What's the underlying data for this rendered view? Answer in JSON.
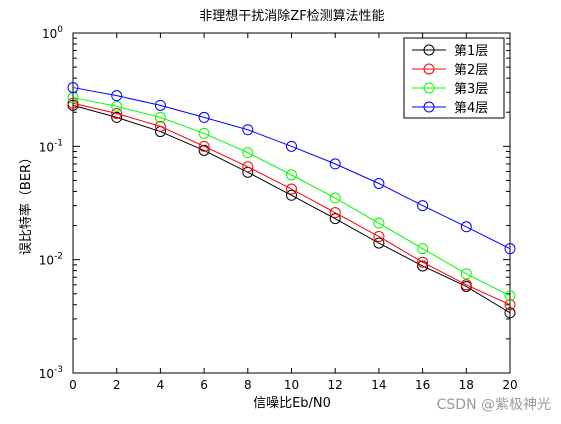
{
  "chart_data": {
    "type": "line",
    "title": "非理想干扰消除ZF检测算法性能",
    "xlabel": "信噪比Eb/N0",
    "ylabel": "误比特率（BER）",
    "yscale": "log",
    "xlim": [
      0,
      20
    ],
    "ylim": [
      0.001,
      1
    ],
    "x": [
      0,
      2,
      4,
      6,
      8,
      10,
      12,
      14,
      16,
      18,
      20
    ],
    "x_tick_labels": [
      "0",
      "2",
      "4",
      "6",
      "8",
      "10",
      "12",
      "14",
      "16",
      "18",
      "20"
    ],
    "y_ticks": [
      {
        "base": "10",
        "exp": "0"
      },
      {
        "base": "10",
        "exp": "-1"
      },
      {
        "base": "10",
        "exp": "-2"
      },
      {
        "base": "10",
        "exp": "-3"
      }
    ],
    "grid": false,
    "legend_position": "top-right",
    "series": [
      {
        "name": "第1层",
        "color": "#000000",
        "marker": "circle",
        "values": [
          0.23,
          0.18,
          0.135,
          0.092,
          0.059,
          0.037,
          0.023,
          0.014,
          0.0088,
          0.0058,
          0.0034
        ]
      },
      {
        "name": "第2层",
        "color": "#ff0000",
        "marker": "circle",
        "values": [
          0.24,
          0.195,
          0.15,
          0.1,
          0.066,
          0.042,
          0.026,
          0.016,
          0.0095,
          0.006,
          0.004
        ]
      },
      {
        "name": "第3层",
        "color": "#00ff00",
        "marker": "circle",
        "values": [
          0.27,
          0.225,
          0.18,
          0.13,
          0.088,
          0.056,
          0.035,
          0.021,
          0.0125,
          0.0075,
          0.0048
        ]
      },
      {
        "name": "第4层",
        "color": "#0000ff",
        "marker": "circle",
        "values": [
          0.33,
          0.28,
          0.23,
          0.18,
          0.14,
          0.1,
          0.07,
          0.047,
          0.03,
          0.0195,
          0.0125
        ]
      }
    ]
  },
  "watermark": "CSDN @紫极神光"
}
